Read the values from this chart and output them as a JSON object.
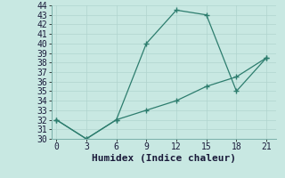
{
  "xlabel": "Humidex (Indice chaleur)",
  "line1_x": [
    0,
    3,
    6,
    9,
    12,
    15,
    18,
    21
  ],
  "line1_y": [
    32,
    30,
    32,
    40,
    43.5,
    43,
    35,
    38.5
  ],
  "line2_x": [
    0,
    3,
    6,
    9,
    12,
    15,
    18,
    21
  ],
  "line2_y": [
    32,
    30,
    32,
    33,
    34,
    35.5,
    36.5,
    38.5
  ],
  "line_color": "#2d7d6e",
  "bg_color": "#c8e8e2",
  "grid_color": "#b0d4ce",
  "ylim": [
    30,
    44
  ],
  "xlim": [
    -0.5,
    22
  ],
  "yticks": [
    30,
    31,
    32,
    33,
    34,
    35,
    36,
    37,
    38,
    39,
    40,
    41,
    42,
    43,
    44
  ],
  "xticks": [
    0,
    3,
    6,
    9,
    12,
    15,
    18,
    21
  ],
  "tick_fontsize": 7,
  "label_fontsize": 8
}
